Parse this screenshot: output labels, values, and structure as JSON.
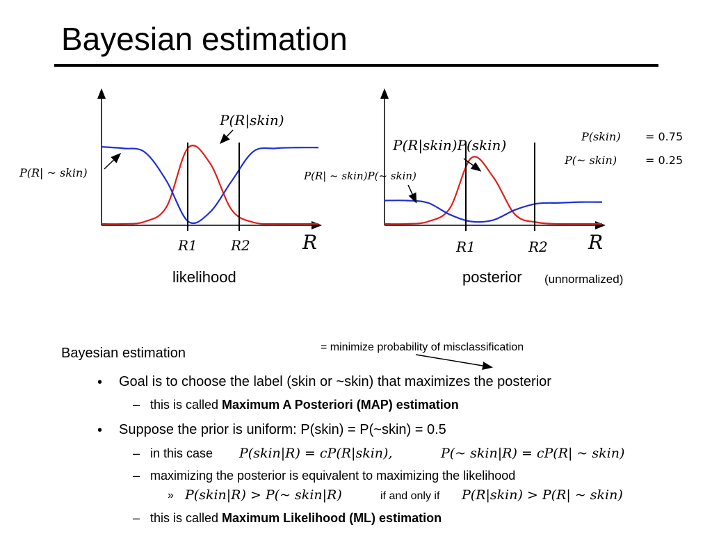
{
  "title": "Bayesian estimation",
  "figures": {
    "left_caption": "likelihood",
    "right_caption_main": "posterior",
    "right_caption_sub": "(unnormalized)",
    "left_label_skin": "P(R|skin)",
    "left_label_notskin": "P(R| ~ skin)",
    "right_label_skin": "P(R|skin)P(skin)",
    "right_label_notskin": "P(R| ~ skin)P(~ skin)",
    "x_axis_label": "R",
    "threshold_1": "R1",
    "threshold_2": "R2",
    "prior_skin_label": "P(skin)",
    "prior_skin_value": "= 0.75",
    "prior_notskin_label": "P(~ skin)",
    "prior_notskin_value": "= 0.25"
  },
  "chart_data": [
    {
      "type": "line",
      "title": "likelihood",
      "xlabel": "R",
      "ylabel": "",
      "x": [
        0,
        0.1,
        0.2,
        0.3,
        0.4,
        0.5,
        0.6,
        0.7,
        0.8,
        0.9,
        1.0
      ],
      "series": [
        {
          "name": "P(R|skin)",
          "color": "#e0201a",
          "values": [
            0.0,
            0.0,
            0.03,
            0.22,
            0.98,
            0.78,
            0.18,
            0.02,
            0.0,
            0.0,
            0.0
          ]
        },
        {
          "name": "P(R| ~ skin)",
          "color": "#1f2fd6",
          "values": [
            0.99,
            0.97,
            0.92,
            0.55,
            0.03,
            0.15,
            0.55,
            0.93,
            0.97,
            0.98,
            0.98
          ]
        }
      ],
      "thresholds": [
        "R1",
        "R2"
      ]
    },
    {
      "type": "line",
      "title": "posterior (unnormalized)",
      "xlabel": "R",
      "ylabel": "",
      "x": [
        0,
        0.1,
        0.2,
        0.3,
        0.4,
        0.5,
        0.6,
        0.7,
        0.8,
        0.9,
        1.0
      ],
      "series": [
        {
          "name": "P(R|skin)P(skin)",
          "color": "#e0201a",
          "values": [
            0.0,
            0.0,
            0.03,
            0.2,
            0.85,
            0.6,
            0.12,
            0.02,
            0.0,
            0.0,
            0.0
          ]
        },
        {
          "name": "P(R| ~ skin)P(~ skin)",
          "color": "#1f2fd6",
          "values": [
            0.3,
            0.3,
            0.27,
            0.12,
            0.03,
            0.05,
            0.18,
            0.26,
            0.27,
            0.28,
            0.28
          ]
        }
      ],
      "thresholds": [
        "R1",
        "R2"
      ]
    }
  ],
  "content": {
    "level1": "Bayesian estimation",
    "annotation": "= minimize probability of misclassification",
    "bullet1": "Goal is to choose the label (skin or ~skin) that maximizes the posterior",
    "bullet1_sub_prefix": "this is called ",
    "bullet1_sub_bold": "Maximum A Posteriori (MAP) estimation",
    "bullet2": "Suppose the prior is uniform:  P(skin) = P(~skin) = 0.5",
    "sub_incase": "in this case",
    "eq_incase_1": "P(skin|R) = cP(R|skin),",
    "eq_incase_2": "P(~ skin|R) = cP(R| ~ skin)",
    "sub_maximizing": "maximizing the posterior is equivalent to maximizing the likelihood",
    "sub_sub_bullet": "»",
    "eq_left": "P(skin|R) > P(~ skin|R)",
    "if_only_if": "if and only if",
    "eq_right": "P(R|skin) > P(R| ~ skin)",
    "ml_prefix": "this is called ",
    "ml_bold": "Maximum Likelihood (ML) estimation",
    "bullet_dot": "•",
    "dash": "–"
  }
}
